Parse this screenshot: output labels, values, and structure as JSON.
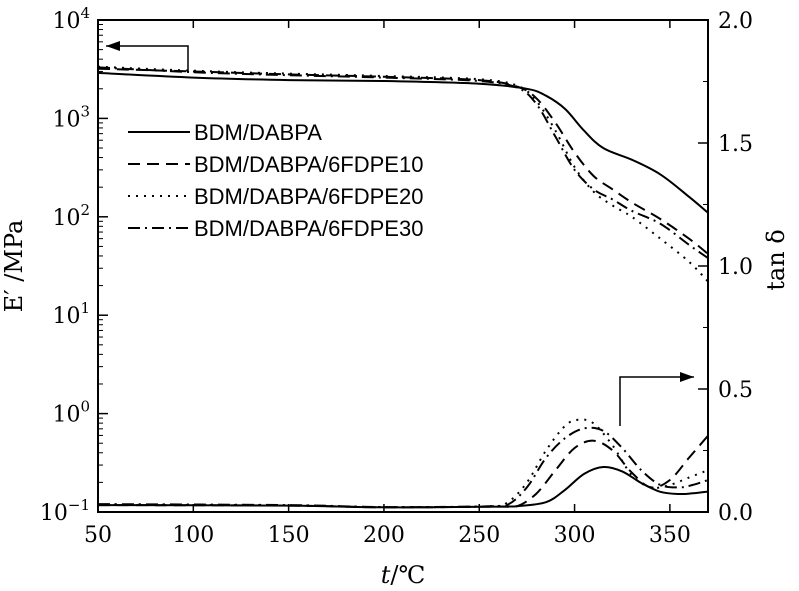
{
  "chart_data": {
    "type": "line",
    "xlabel": "t/℃",
    "ylabel_left": "E′ /MPa",
    "ylabel_right": "tan δ",
    "xlim": [
      50,
      370
    ],
    "ylim_left": [
      -1,
      4
    ],
    "ylim_right": [
      0.0,
      2.0
    ],
    "yscale_left": "log",
    "x_ticks": [
      50,
      100,
      150,
      200,
      250,
      300,
      350
    ],
    "y_left_ticks": [
      {
        "base": "10",
        "exp": "4",
        "value": 4
      },
      {
        "base": "10",
        "exp": "3",
        "value": 3
      },
      {
        "base": "10",
        "exp": "2",
        "value": 2
      },
      {
        "base": "10",
        "exp": "1",
        "value": 1
      },
      {
        "base": "10",
        "exp": "0",
        "value": 0
      },
      {
        "base": "10",
        "exp": "−1",
        "value": -1
      }
    ],
    "y_right_ticks": [
      "0.0",
      "0.5",
      "1.0",
      "1.5",
      "2.0"
    ],
    "legend_position": "upper-left",
    "series": [
      {
        "name": "BDM/DABPA",
        "dash": "solid",
        "modulus": {
          "x": [
            50,
            100,
            150,
            200,
            250,
            275,
            285,
            295,
            305,
            315,
            330,
            345,
            360,
            370
          ],
          "y": [
            2900,
            2600,
            2450,
            2400,
            2250,
            2000,
            1700,
            1250,
            750,
            500,
            380,
            270,
            160,
            110
          ]
        },
        "tan_delta": {
          "x": [
            50,
            150,
            200,
            260,
            270,
            285,
            295,
            305,
            315,
            325,
            335,
            345,
            355,
            362,
            370
          ],
          "y": [
            0.028,
            0.026,
            0.019,
            0.022,
            0.024,
            0.04,
            0.09,
            0.155,
            0.183,
            0.165,
            0.118,
            0.082,
            0.073,
            0.076,
            0.083
          ]
        }
      },
      {
        "name": "BDM/DABPA/6FDPE10",
        "dash": "dashed",
        "modulus": {
          "x": [
            50,
            100,
            150,
            200,
            250,
            270,
            280,
            290,
            300,
            310,
            320,
            330,
            345,
            360,
            370
          ],
          "y": [
            3200,
            3000,
            2800,
            2650,
            2450,
            2100,
            1600,
            900,
            450,
            260,
            190,
            140,
            95,
            60,
            42
          ]
        },
        "tan_delta": {
          "x": [
            50,
            150,
            200,
            260,
            270,
            280,
            290,
            300,
            310,
            320,
            330,
            340,
            350,
            360,
            370
          ],
          "y": [
            0.028,
            0.026,
            0.019,
            0.022,
            0.024,
            0.075,
            0.17,
            0.26,
            0.29,
            0.25,
            0.16,
            0.1,
            0.13,
            0.22,
            0.31
          ]
        }
      },
      {
        "name": "BDM/DABPA/6FDPE20",
        "dash": "dotted",
        "modulus": {
          "x": [
            50,
            100,
            150,
            200,
            250,
            270,
            280,
            290,
            300,
            310,
            320,
            330,
            345,
            360,
            370
          ],
          "y": [
            3350,
            3050,
            2850,
            2700,
            2500,
            2150,
            1500,
            750,
            320,
            180,
            130,
            100,
            60,
            35,
            22
          ]
        },
        "tan_delta": {
          "x": [
            50,
            150,
            200,
            255,
            265,
            275,
            285,
            295,
            302,
            310,
            320,
            330,
            340,
            350,
            360,
            370
          ],
          "y": [
            0.03,
            0.027,
            0.02,
            0.023,
            0.04,
            0.12,
            0.25,
            0.35,
            0.375,
            0.36,
            0.27,
            0.15,
            0.1,
            0.11,
            0.14,
            0.17
          ]
        }
      },
      {
        "name": "BDM/DABPA/6FDPE30",
        "dash": "dashdot",
        "modulus": {
          "x": [
            50,
            100,
            150,
            200,
            250,
            270,
            280,
            290,
            300,
            310,
            320,
            330,
            345,
            360,
            370
          ],
          "y": [
            3300,
            2950,
            2750,
            2600,
            2400,
            2050,
            1400,
            650,
            300,
            190,
            150,
            115,
            85,
            52,
            38
          ]
        },
        "tan_delta": {
          "x": [
            50,
            150,
            200,
            255,
            265,
            275,
            285,
            295,
            305,
            315,
            325,
            335,
            345,
            355,
            362,
            370
          ],
          "y": [
            0.032,
            0.028,
            0.02,
            0.023,
            0.03,
            0.1,
            0.22,
            0.3,
            0.34,
            0.33,
            0.26,
            0.17,
            0.11,
            0.1,
            0.11,
            0.13
          ]
        }
      }
    ]
  }
}
